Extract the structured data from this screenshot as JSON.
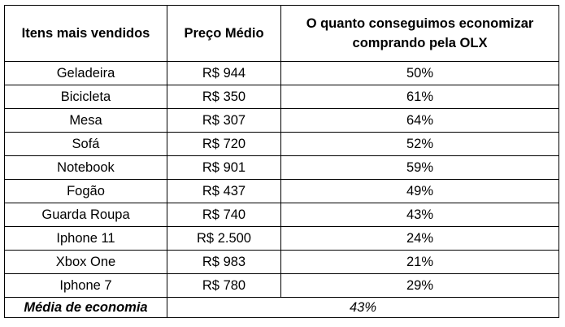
{
  "table": {
    "headers": [
      "Itens mais vendidos",
      "Preço Médio",
      "O quanto conseguimos economizar comprando pela OLX"
    ],
    "rows": [
      {
        "item": "Geladeira",
        "price": "R$ 944",
        "savings": "50%"
      },
      {
        "item": "Bicicleta",
        "price": "R$ 350",
        "savings": "61%"
      },
      {
        "item": "Mesa",
        "price": "R$ 307",
        "savings": "64%"
      },
      {
        "item": "Sofá",
        "price": "R$ 720",
        "savings": "52%"
      },
      {
        "item": "Notebook",
        "price": "R$ 901",
        "savings": "59%"
      },
      {
        "item": "Fogão",
        "price": "R$ 437",
        "savings": "49%"
      },
      {
        "item": "Guarda Roupa",
        "price": "R$ 740",
        "savings": "43%"
      },
      {
        "item": "Iphone 11",
        "price": "R$ 2.500",
        "savings": "24%"
      },
      {
        "item": "Xbox One",
        "price": "R$ 983",
        "savings": "21%"
      },
      {
        "item": "Iphone 7",
        "price": "R$ 780",
        "savings": "29%"
      }
    ],
    "footer": {
      "label": "Média de economia",
      "value": "43%"
    }
  }
}
